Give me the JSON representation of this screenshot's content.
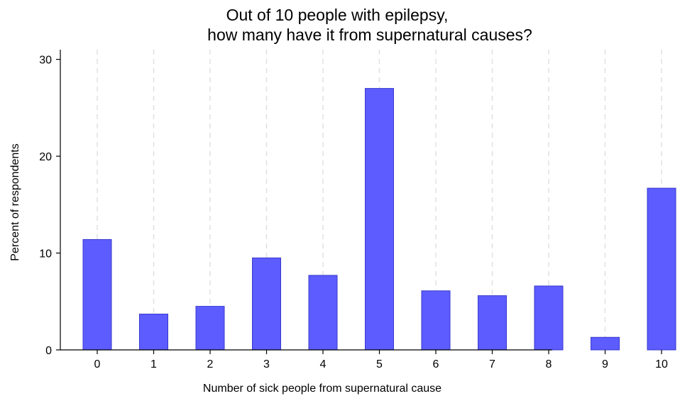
{
  "chart_data": {
    "type": "bar",
    "title": [
      "Out of 10 people with epilepsy,",
      "how many have it from supernatural causes?"
    ],
    "xlabel": "Number of sick people from supernatural cause",
    "ylabel": "Percent of respondents",
    "categories": [
      "0",
      "1",
      "2",
      "3",
      "4",
      "5",
      "6",
      "7",
      "8",
      "9",
      "10"
    ],
    "values": [
      11.4,
      3.7,
      4.5,
      9.5,
      7.7,
      27.0,
      6.1,
      5.6,
      6.6,
      1.3,
      16.7
    ],
    "ylim": [
      0,
      31
    ],
    "yticks": [
      "0",
      "10",
      "20",
      "30"
    ],
    "grid": "vertical dashed",
    "legend": "none",
    "colors": {
      "bar_fill": "#5c5cff",
      "bar_edge": "#3a3acc",
      "grid": "#e0e0e0",
      "axis": "#000000"
    }
  }
}
